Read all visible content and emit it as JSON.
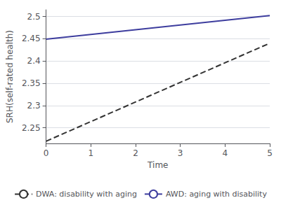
{
  "chart_data": {
    "type": "line",
    "xlabel": "Time",
    "ylabel": "SRH(self-rated health)",
    "x": [
      0,
      5
    ],
    "series": [
      {
        "name": "DWA: disability with aging",
        "color": "#333333",
        "line_style": "dashed",
        "values": [
          2.22,
          2.44
        ]
      },
      {
        "name": "AWD: aging with disability",
        "color": "#3d3d9e",
        "line_style": "solid",
        "values": [
          2.449,
          2.502
        ]
      }
    ],
    "xlim": [
      0,
      5
    ],
    "ylim": [
      2.215,
      2.515
    ],
    "xticks": [
      0,
      1,
      2,
      3,
      4,
      5
    ],
    "yticks": [
      2.25,
      2.3,
      2.35,
      2.4,
      2.45,
      2.5
    ],
    "grid": true,
    "legend": "bottom"
  }
}
